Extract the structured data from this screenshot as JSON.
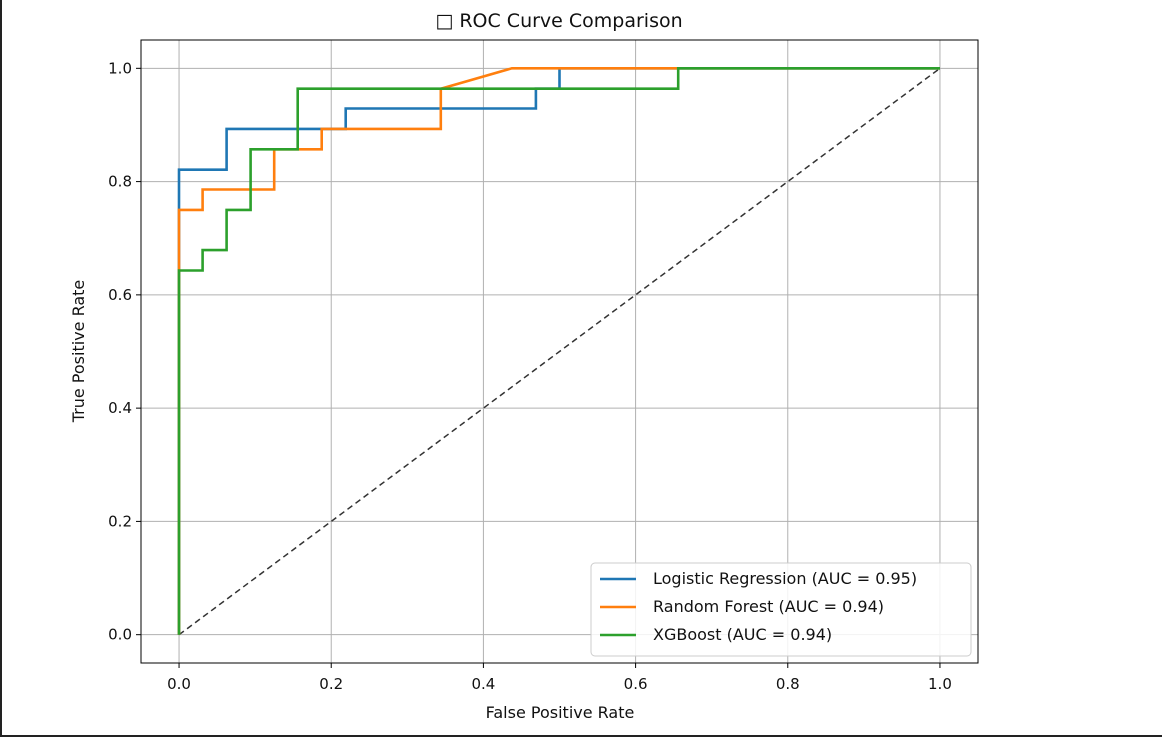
{
  "chart_data": {
    "type": "line",
    "title": "□ ROC Curve Comparison",
    "xlabel": "False Positive Rate",
    "ylabel": "True Positive Rate",
    "xlim": [
      -0.05,
      1.05
    ],
    "ylim": [
      -0.05,
      1.05
    ],
    "xticks": [
      "0.0",
      "0.2",
      "0.4",
      "0.6",
      "0.8",
      "1.0"
    ],
    "yticks": [
      "0.0",
      "0.2",
      "0.4",
      "0.6",
      "0.8",
      "1.0"
    ],
    "grid": true,
    "legend_position": "lower-right",
    "series": [
      {
        "name": "Logistic Regression (AUC = 0.95)",
        "color": "#1f77b4",
        "x": [
          0.0,
          0.0,
          0.0,
          0.0625,
          0.0625,
          0.219,
          0.219,
          0.469,
          0.469,
          0.5,
          0.5,
          1.0
        ],
        "y": [
          0.0,
          0.821,
          0.821,
          0.821,
          0.893,
          0.893,
          0.929,
          0.929,
          0.964,
          0.964,
          1.0,
          1.0
        ]
      },
      {
        "name": "Random Forest (AUC = 0.94)",
        "color": "#ff7f0e",
        "x": [
          0.0,
          0.0,
          0.0,
          0.0,
          0.031,
          0.031,
          0.125,
          0.125,
          0.1875,
          0.1875,
          0.344,
          0.344,
          0.4375,
          1.0
        ],
        "y": [
          0.0,
          0.643,
          0.75,
          0.75,
          0.75,
          0.786,
          0.786,
          0.857,
          0.857,
          0.893,
          0.893,
          0.964,
          1.0,
          1.0
        ]
      },
      {
        "name": "XGBoost (AUC = 0.94)",
        "color": "#2ca02c",
        "x": [
          0.0,
          0.0,
          0.031,
          0.031,
          0.0625,
          0.0625,
          0.094,
          0.094,
          0.156,
          0.156,
          0.656,
          0.656,
          1.0
        ],
        "y": [
          0.0,
          0.643,
          0.643,
          0.679,
          0.679,
          0.75,
          0.75,
          0.857,
          0.857,
          0.964,
          0.964,
          1.0,
          1.0
        ]
      }
    ],
    "reference_line": {
      "style": "dashed",
      "color": "#000000",
      "x": [
        0,
        1
      ],
      "y": [
        0,
        1
      ]
    }
  }
}
